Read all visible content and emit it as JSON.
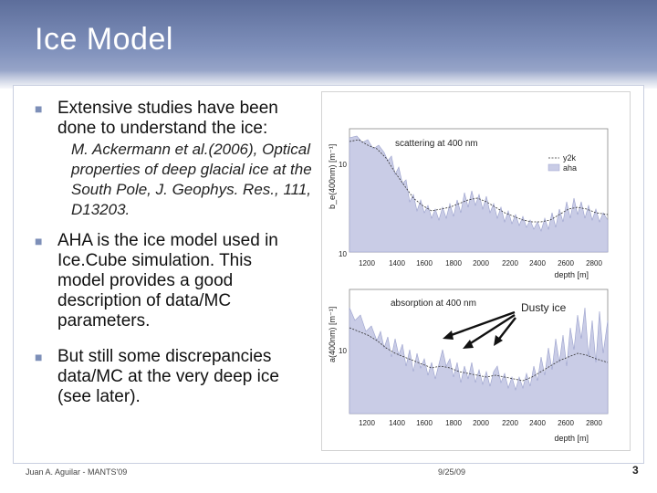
{
  "slide": {
    "title": "Ice Model",
    "bullets": [
      {
        "text": "Extensive studies have been done to understand the ice:"
      },
      {
        "text": "AHA is the ice model used in Ice.Cube simulation. This model provides a good description of data/MC parameters."
      },
      {
        "text": "But still some discrepancies data/MC at the very deep ice (see later)."
      }
    ],
    "reference": "M. Ackermann et al.(2006), Optical properties of deep glacial ice at the South Pole, J. Geophys. Res., 111, D13203."
  },
  "figure": {
    "top_panel": {
      "title": "scattering at 400 nm",
      "ylabel": "b_e(400nm) [m⁻¹]",
      "yticks": [
        "10",
        "10"
      ],
      "legend": [
        "y2k",
        "aha"
      ]
    },
    "bottom_panel": {
      "title": "absorption at 400 nm",
      "ylabel": "a(400nm) [m⁻¹]",
      "yticks": [
        "10"
      ],
      "annotation": "Dusty ice"
    },
    "xticks": [
      "1200",
      "1400",
      "1600",
      "1800",
      "2000",
      "2200",
      "2400",
      "2600",
      "2800"
    ],
    "xlabel": "depth [m]",
    "colors": {
      "aha_fill": "#c9cce6",
      "y2k_line": "#333333",
      "arrow": "#111111"
    }
  },
  "footer": {
    "left": "Juan A. Aguilar - MANTS'09",
    "date": "9/25/09",
    "page": "3"
  }
}
